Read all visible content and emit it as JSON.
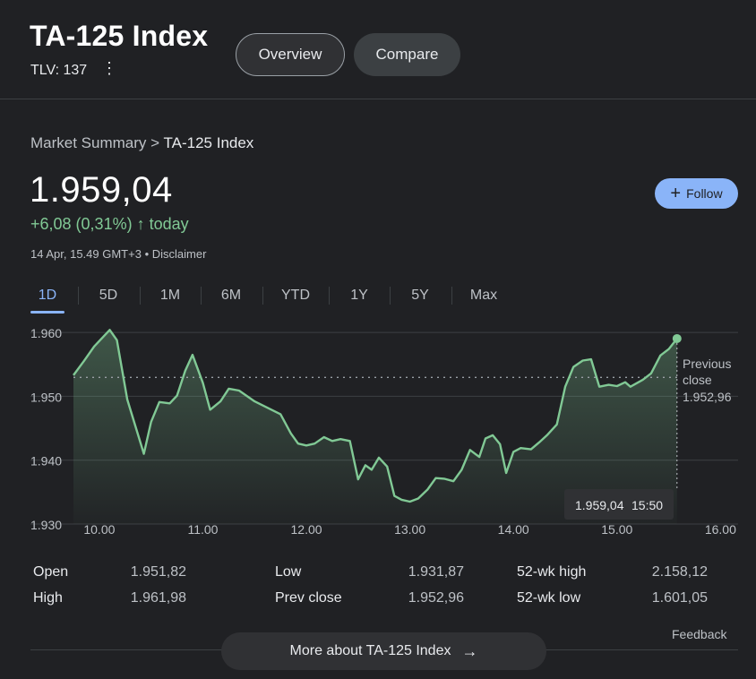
{
  "header": {
    "title": "TA-125 Index",
    "ticker": "TLV: 137",
    "menu_glyph": "⋮",
    "tabs": [
      {
        "label": "Overview"
      },
      {
        "label": "Compare"
      }
    ]
  },
  "summary": {
    "breadcrumb_root": "Market Summary",
    "breadcrumb_sep": ">",
    "breadcrumb_current": "TA-125 Index",
    "price": "1.959,04",
    "change": "+6,08 (0,31%)",
    "change_arrow": "↑",
    "change_period": "today",
    "timestamp": "14 Apr, 15.49 GMT+3",
    "disclaimer_sep": "•",
    "disclaimer": "Disclaimer",
    "follow_plus": "+",
    "follow_label": "Follow"
  },
  "ranges": [
    "1D",
    "5D",
    "1M",
    "6M",
    "YTD",
    "1Y",
    "5Y",
    "Max"
  ],
  "selected_range": "1D",
  "chart_data": {
    "type": "area",
    "title": "",
    "xlabel": "",
    "ylabel": "",
    "x_ticks": [
      "10.00",
      "11.00",
      "12.00",
      "13.00",
      "14.00",
      "15.00",
      "16.00"
    ],
    "y_ticks": [
      "1.960",
      "1.950",
      "1.940",
      "1.930"
    ],
    "xlim": [
      9.75,
      16.17
    ],
    "ylim": [
      1930,
      1961
    ],
    "previous_close": 1952.96,
    "previous_close_label_1": "Previous",
    "previous_close_label_2": "close",
    "previous_close_value": "1.952,96",
    "tooltip_price": "1.959,04",
    "tooltip_time": "15:50",
    "line_color": "#81c995",
    "grid": true,
    "series": [
      {
        "x": [
          9.75,
          9.85,
          9.95,
          10.1,
          10.17,
          10.27,
          10.43,
          10.5,
          10.58,
          10.68,
          10.75,
          10.83,
          10.9,
          11.0,
          11.07,
          11.17,
          11.25,
          11.35,
          11.5,
          11.65,
          11.75,
          11.85,
          11.92,
          12.0,
          12.08,
          12.17,
          12.25,
          12.33,
          12.42,
          12.5,
          12.57,
          12.63,
          12.7,
          12.78,
          12.85,
          12.92,
          13.0,
          13.08,
          13.17,
          13.25,
          13.33,
          13.42,
          13.5,
          13.58,
          13.67,
          13.73,
          13.8,
          13.87,
          13.93,
          14.0,
          14.07,
          14.17,
          14.25,
          14.33,
          14.42,
          14.5,
          14.58,
          14.67,
          14.75,
          14.83,
          14.92,
          15.0,
          15.08,
          15.13,
          15.25,
          15.33,
          15.42,
          15.5,
          15.58,
          15.67,
          15.75,
          15.83
        ],
        "y": [
          1953.3,
          1955.5,
          1957.8,
          1960.4,
          1958.8,
          1949.5,
          1941,
          1946,
          1949.1,
          1948.9,
          1950.1,
          1954,
          1956.5,
          1952.1,
          1947.9,
          1949.2,
          1951.2,
          1950.9,
          1949.2,
          1948,
          1947.2,
          1944.2,
          1942.6,
          1942.3,
          1942.6,
          1943.6,
          1943,
          1943.3,
          1943,
          1937,
          1939.2,
          1938.5,
          1940.4,
          1939,
          1934.4,
          1933.8,
          1933.5,
          1934,
          1935.4,
          1937.2,
          1937.1,
          1936.7,
          1938.5,
          1941.6,
          1940.5,
          1943.4,
          1943.9,
          1942.5,
          1938,
          1941.3,
          1941.9,
          1941.7,
          1942.8,
          1944,
          1945.6,
          1951.5,
          1954.6,
          1955.6,
          1955.8,
          1951.5,
          1951.8,
          1951.6,
          1952.2,
          1951.5,
          1952.6,
          1953.6,
          1956.4,
          1957.4,
          1959.04,
          1959.04,
          1959.04,
          1959.04
        ]
      }
    ]
  },
  "stats": {
    "col1": [
      {
        "label": "Open",
        "value": "1.951,82"
      },
      {
        "label": "High",
        "value": "1.961,98"
      }
    ],
    "col2": [
      {
        "label": "Low",
        "value": "1.931,87"
      },
      {
        "label": "Prev close",
        "value": "1.952,96"
      }
    ],
    "col3": [
      {
        "label": "52-wk high",
        "value": "2.158,12"
      },
      {
        "label": "52-wk low",
        "value": "1.601,05"
      }
    ]
  },
  "footer": {
    "feedback": "Feedback",
    "more_label": "More about TA-125 Index",
    "more_arrow": "→"
  }
}
